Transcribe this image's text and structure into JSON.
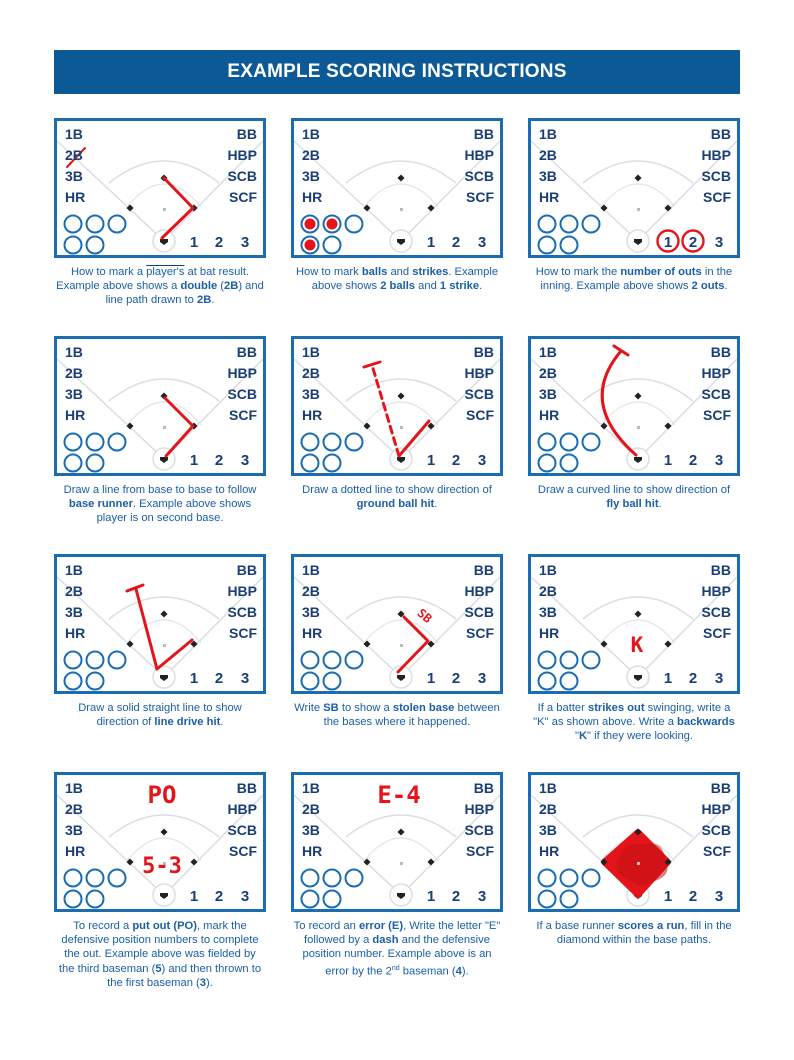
{
  "title": "EXAMPLE SCORING INSTRUCTIONS",
  "labels": {
    "left": [
      "1B",
      "2B",
      "3B",
      "HR"
    ],
    "right": [
      "BB",
      "HBP",
      "SCB",
      "SCF"
    ],
    "outs": [
      "1",
      "2",
      "3"
    ]
  },
  "colors": {
    "banner": "#0b5a96",
    "border": "#1b6cb0",
    "label": "#1b3f75",
    "caption": "#1b5fa8",
    "mark": "#e3151b"
  },
  "cards": [
    {
      "caption": [
        [
          "How to mark a ",
          "player's",
          " at bat result. Example above shows a "
        ],
        [
          "double",
          true
        ],
        [
          " ("
        ],
        [
          "2B",
          true
        ],
        [
          ") and line path drawn to "
        ],
        [
          "2B",
          true
        ],
        [
          "."
        ]
      ],
      "marks": {
        "icon": "cross-out-2b",
        "path": "double-path"
      }
    },
    {
      "caption": [
        [
          "How to mark "
        ],
        [
          "balls",
          true
        ],
        [
          " and "
        ],
        [
          "strikes",
          true
        ],
        [
          ". Example above shows "
        ],
        [
          "2 balls",
          true
        ],
        [
          " and "
        ],
        [
          "1 strike",
          true
        ],
        [
          "."
        ]
      ],
      "marks": {
        "filled_count_circles": [
          0,
          1,
          3
        ]
      }
    },
    {
      "caption": [
        [
          "How to mark the "
        ],
        [
          "number of outs",
          true
        ],
        [
          " in the inning. Example above shows "
        ],
        [
          "2 outs",
          true
        ],
        [
          "."
        ]
      ],
      "marks": {
        "circled_outs": [
          1,
          2
        ]
      }
    },
    {
      "caption": [
        [
          "Draw a line from base to base to follow "
        ],
        [
          "base runner",
          true
        ],
        [
          ". Example above shows player is on second base."
        ]
      ],
      "marks": {
        "path": "runner-to-second"
      }
    },
    {
      "caption": [
        [
          "Draw a dotted line to show direction of "
        ],
        [
          "ground ball hit",
          true
        ],
        [
          "."
        ]
      ],
      "marks": {
        "path": "ground-ball"
      }
    },
    {
      "caption": [
        [
          "Draw a curved line to show direction of "
        ],
        [
          "fly ball hit",
          true
        ],
        [
          "."
        ]
      ],
      "marks": {
        "path": "fly-ball"
      }
    },
    {
      "caption": [
        [
          "Draw a solid straight line to show direction of "
        ],
        [
          "line drive hit",
          true
        ],
        [
          "."
        ]
      ],
      "marks": {
        "path": "line-drive"
      }
    },
    {
      "caption": [
        [
          "Write "
        ],
        [
          "SB",
          true
        ],
        [
          " to show a "
        ],
        [
          "stolen base",
          true
        ],
        [
          " between the bases where it happened."
        ]
      ],
      "marks": {
        "text": "SB"
      }
    },
    {
      "caption": [
        [
          "If a batter "
        ],
        [
          "strikes out",
          true
        ],
        [
          " swinging, write a \"K\" as shown above. Write a "
        ],
        [
          "backwards",
          true
        ],
        [
          " \""
        ],
        [
          "K",
          true
        ],
        [
          "\" if they were looking."
        ]
      ],
      "marks": {
        "text": "K"
      }
    },
    {
      "caption": [
        [
          "To record a "
        ],
        [
          "put out (PO)",
          true
        ],
        [
          ", mark the defensive position numbers to complete the out. Example above was fielded by the third baseman ("
        ],
        [
          "5",
          true
        ],
        [
          ") and then thrown to the first baseman ("
        ],
        [
          "3",
          true
        ],
        [
          ")."
        ]
      ],
      "marks": {
        "text_top": "PO",
        "text_center": "5-3"
      }
    },
    {
      "caption": [
        [
          "To record an "
        ],
        [
          "error (E)",
          true
        ],
        [
          ", Write the letter \"E\" followed by a "
        ],
        [
          "dash",
          true
        ],
        [
          " and the defensive position number. Example above is an error by the 2"
        ],
        [
          "nd",
          "sup"
        ],
        [
          " baseman ("
        ],
        [
          "4",
          true
        ],
        [
          ")."
        ]
      ],
      "marks": {
        "text_top": "E-4"
      }
    },
    {
      "caption": [
        [
          "If a base runner "
        ],
        [
          "scores a run",
          true
        ],
        [
          ", fill in the diamond within the base paths."
        ]
      ],
      "marks": {
        "fill": "diamond"
      }
    }
  ]
}
